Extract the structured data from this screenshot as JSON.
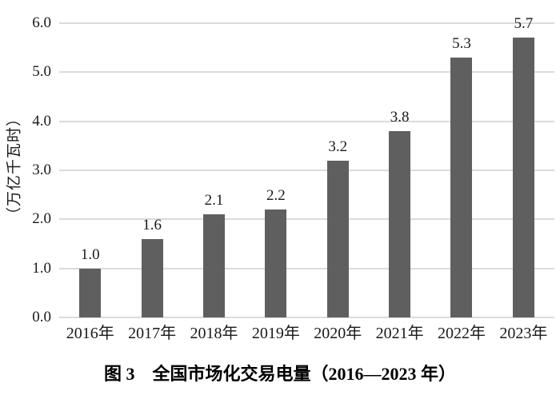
{
  "figure": {
    "caption": "图 3　全国市场化交易电量（2016—2023 年）"
  },
  "chart_data": {
    "type": "bar",
    "title": "",
    "categories": [
      "2016年",
      "2017年",
      "2018年",
      "2019年",
      "2020年",
      "2021年",
      "2022年",
      "2023年"
    ],
    "values": [
      1.0,
      1.6,
      2.1,
      2.2,
      3.2,
      3.8,
      5.3,
      5.7
    ],
    "value_labels": [
      "1.0",
      "1.6",
      "2.1",
      "2.2",
      "3.2",
      "3.8",
      "5.3",
      "5.7"
    ],
    "xlabel": "",
    "ylabel": "（万亿千瓦时）",
    "ylim": [
      0,
      6
    ],
    "ytick_values": [
      0,
      1,
      2,
      3,
      4,
      5,
      6
    ],
    "ytick_labels": [
      "0.0",
      "1.0",
      "2.0",
      "3.0",
      "4.0",
      "5.0",
      "6.0"
    ],
    "grid": "horizontal",
    "legend_position": "none",
    "bar_color": "#5f5f5f",
    "gridline_color": "#dbdbdb",
    "text_color": "#1a1a1a"
  }
}
